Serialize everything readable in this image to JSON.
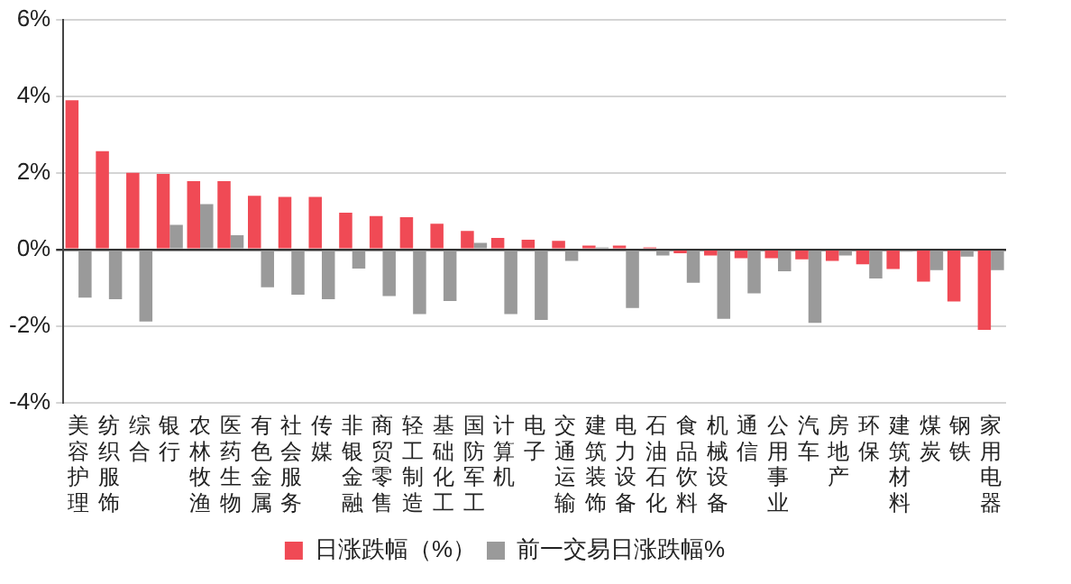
{
  "chart_data": {
    "type": "bar",
    "categories": [
      "美容护理",
      "纺织服饰",
      "综合",
      "银行",
      "农林牧渔",
      "医药生物",
      "有色金属",
      "社会服务",
      "传媒",
      "非银金融",
      "商贸零售",
      "轻工制造",
      "基础化工",
      "国防军工",
      "计算机",
      "电子",
      "交通运输",
      "建筑装饰",
      "电力设备",
      "石油石化",
      "食品饮料",
      "机械设备",
      "通信",
      "公用事业",
      "汽车",
      "房地产",
      "环保",
      "建筑材料",
      "煤炭",
      "钢铁",
      "家用电器"
    ],
    "series": [
      {
        "name": "日涨跌幅（%）",
        "color": "#f04a55",
        "values": [
          3.89,
          2.56,
          2.0,
          1.97,
          1.78,
          1.78,
          1.4,
          1.37,
          1.37,
          0.96,
          0.87,
          0.84,
          0.67,
          0.48,
          0.3,
          0.25,
          0.22,
          0.1,
          0.1,
          0.05,
          -0.1,
          -0.16,
          -0.23,
          -0.23,
          -0.26,
          -0.3,
          -0.39,
          -0.51,
          -0.84,
          -1.36,
          -2.1
        ]
      },
      {
        "name": "前一交易日涨跌幅%",
        "color": "#9a9a9a",
        "values": [
          -1.26,
          -1.3,
          -1.88,
          0.64,
          1.18,
          0.37,
          -0.99,
          -1.18,
          -1.3,
          -0.5,
          -1.22,
          -1.69,
          -1.35,
          0.17,
          -1.69,
          -1.84,
          -0.3,
          0.05,
          -1.53,
          -0.16,
          -0.87,
          -1.81,
          -1.15,
          -0.57,
          -1.92,
          -0.16,
          -0.76,
          -0.06,
          -0.54,
          -0.19,
          -0.54
        ]
      }
    ],
    "ylim": [
      -4,
      6
    ],
    "yticks": [
      {
        "value": -4,
        "label": "-4%"
      },
      {
        "value": -2,
        "label": "-2%"
      },
      {
        "value": 0,
        "label": "0%"
      },
      {
        "value": 2,
        "label": "2%"
      },
      {
        "value": 4,
        "label": "4%"
      },
      {
        "value": 6,
        "label": "6%"
      }
    ],
    "grid": "y",
    "legend": "bottom"
  }
}
